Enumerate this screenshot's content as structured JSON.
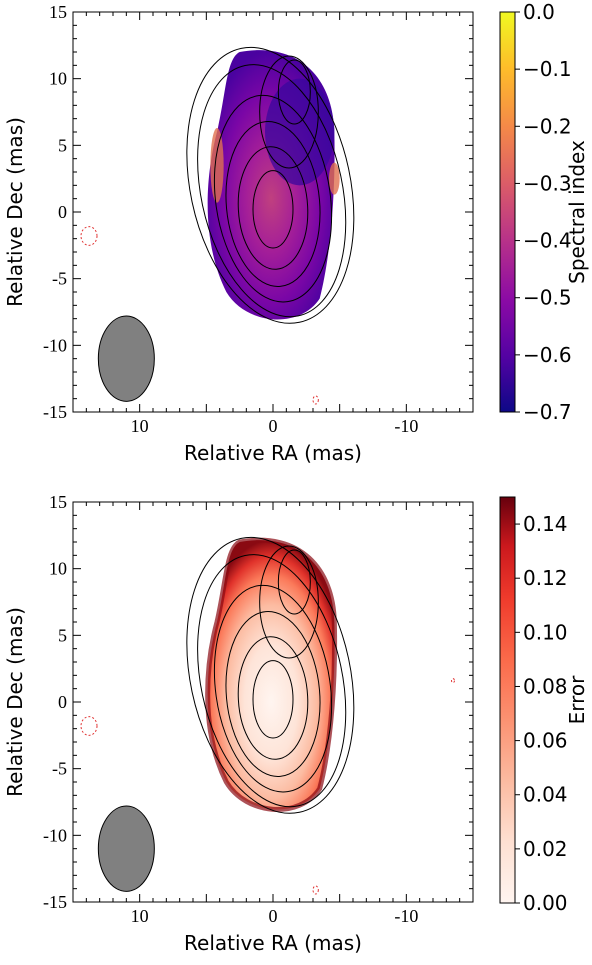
{
  "chart_data": [
    {
      "type": "heatmap",
      "panel": "top",
      "xlabel": "Relative RA (mas)",
      "ylabel": "Relative Dec (mas)",
      "xlim": [
        15,
        -15
      ],
      "ylim": [
        -15,
        15
      ],
      "x_ticks": [
        {
          "v": 10,
          "label": "10"
        },
        {
          "v": 0,
          "label": "0"
        },
        {
          "v": -10,
          "label": "-10"
        }
      ],
      "y_ticks": [
        {
          "v": 15,
          "label": "15"
        },
        {
          "v": 10,
          "label": "10"
        },
        {
          "v": 5,
          "label": "5"
        },
        {
          "v": 0,
          "label": "0"
        },
        {
          "v": -5,
          "label": "-5"
        },
        {
          "v": -10,
          "label": "-10"
        },
        {
          "v": -15,
          "label": "-15"
        }
      ],
      "colorbar": {
        "label": "Spectral index",
        "colormap": "plasma",
        "range": [
          -0.7,
          0.0
        ],
        "ticks": [
          {
            "v": 0.0,
            "label": "0.0"
          },
          {
            "v": -0.1,
            "label": "−0.1"
          },
          {
            "v": -0.2,
            "label": "−0.2"
          },
          {
            "v": -0.3,
            "label": "−0.3"
          },
          {
            "v": -0.4,
            "label": "−0.4"
          },
          {
            "v": -0.5,
            "label": "−0.5"
          },
          {
            "v": -0.6,
            "label": "−0.6"
          },
          {
            "v": -0.7,
            "label": "−0.7"
          }
        ]
      },
      "beam": {
        "x": 11,
        "y": -11,
        "major_mas": 6.4,
        "minor_mas": 4.2,
        "color": "#808080"
      },
      "negative_contours": [
        {
          "x": 13.8,
          "y": -1.8,
          "rx": 0.6,
          "ry": 0.7
        },
        {
          "x": -3.2,
          "y": -14.1,
          "rx": 0.2,
          "ry": 0.3
        }
      ]
    },
    {
      "type": "heatmap",
      "panel": "bottom",
      "xlabel": "Relative RA (mas)",
      "ylabel": "Relative Dec (mas)",
      "xlim": [
        15,
        -15
      ],
      "ylim": [
        -15,
        15
      ],
      "x_ticks": [
        {
          "v": 10,
          "label": "10"
        },
        {
          "v": 0,
          "label": "0"
        },
        {
          "v": -10,
          "label": "-10"
        }
      ],
      "y_ticks": [
        {
          "v": 15,
          "label": "15"
        },
        {
          "v": 10,
          "label": "10"
        },
        {
          "v": 5,
          "label": "5"
        },
        {
          "v": 0,
          "label": "0"
        },
        {
          "v": -5,
          "label": "-5"
        },
        {
          "v": -10,
          "label": "-10"
        },
        {
          "v": -15,
          "label": "-15"
        }
      ],
      "colorbar": {
        "label": "Error",
        "colormap": "reds",
        "range": [
          0.0,
          0.15
        ],
        "ticks": [
          {
            "v": 0.14,
            "label": "0.14"
          },
          {
            "v": 0.12,
            "label": "0.12"
          },
          {
            "v": 0.1,
            "label": "0.10"
          },
          {
            "v": 0.08,
            "label": "0.08"
          },
          {
            "v": 0.06,
            "label": "0.06"
          },
          {
            "v": 0.04,
            "label": "0.04"
          },
          {
            "v": 0.02,
            "label": "0.02"
          },
          {
            "v": 0.0,
            "label": "0.00"
          }
        ]
      },
      "beam": {
        "x": 11,
        "y": -11,
        "major_mas": 6.4,
        "minor_mas": 4.2,
        "color": "#808080"
      },
      "negative_contours": [
        {
          "x": 13.8,
          "y": -1.8,
          "rx": 0.6,
          "ry": 0.7
        },
        {
          "x": -3.2,
          "y": -14.1,
          "rx": 0.2,
          "ry": 0.3
        },
        {
          "x": -13.5,
          "y": 1.6,
          "rx": 0.05,
          "ry": 0.15
        }
      ]
    }
  ]
}
